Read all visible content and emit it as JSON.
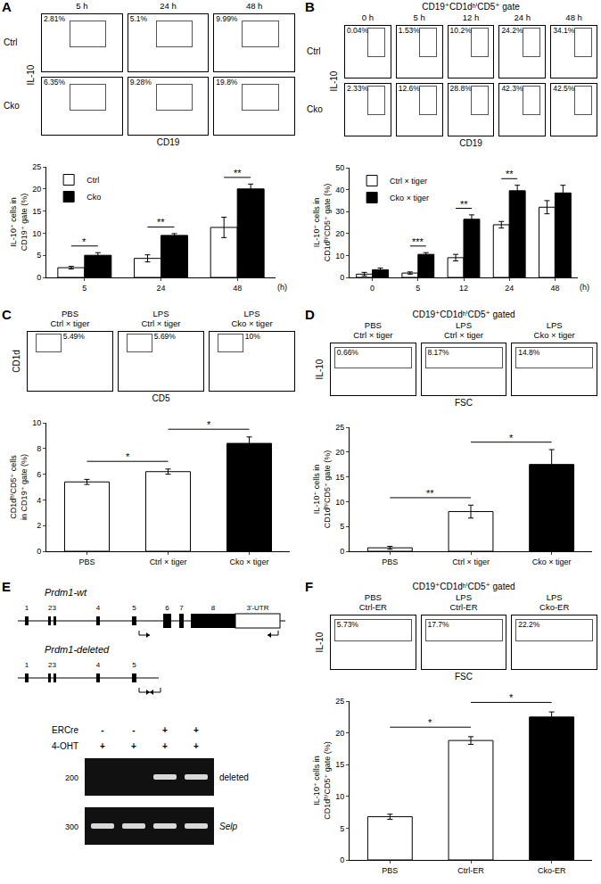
{
  "chart_data": [
    {
      "type": "bar",
      "categories": [
        "5",
        "24",
        "48"
      ],
      "xlabel": "(h)",
      "ylabel": [
        "IL-10⁺ cells in",
        "CD19⁺ gate (%)"
      ],
      "series": [
        {
          "name": "Ctrl",
          "color": "#ffffff",
          "values": [
            2.2,
            4.3,
            11.3
          ],
          "errors": [
            0.3,
            0.8,
            2.3
          ]
        },
        {
          "name": "Cko",
          "color": "#000000",
          "values": [
            5.0,
            9.5,
            20.0
          ],
          "errors": [
            0.6,
            0.4,
            1.1
          ]
        }
      ],
      "ylim": [
        0,
        25
      ],
      "yticks": [
        0,
        5,
        10,
        15,
        20,
        25
      ],
      "legend": "top-left",
      "grid": false,
      "annotations": [
        {
          "category": "5",
          "text": "*"
        },
        {
          "category": "24",
          "text": "**"
        },
        {
          "category": "48",
          "text": "**"
        }
      ]
    },
    {
      "type": "bar",
      "categories": [
        "0",
        "5",
        "12",
        "24",
        "48"
      ],
      "xlabel": "(h)",
      "ylabel": [
        "IL-10⁺ cells in",
        "CD1dʰⁱCD5⁺ gate (%)"
      ],
      "series": [
        {
          "name": "Ctrl × tiger",
          "color": "#ffffff",
          "values": [
            1.5,
            2.0,
            9.0,
            24.0,
            32.0
          ],
          "errors": [
            0.8,
            0.5,
            1.5,
            1.5,
            3.0
          ]
        },
        {
          "name": "Cko × tiger",
          "color": "#000000",
          "values": [
            3.5,
            10.5,
            26.5,
            39.5,
            38.5
          ],
          "errors": [
            0.8,
            0.8,
            2.0,
            2.5,
            3.5
          ]
        }
      ],
      "ylim": [
        0,
        50
      ],
      "yticks": [
        0,
        10,
        20,
        30,
        40,
        50
      ],
      "legend": "top-left",
      "grid": false,
      "annotations": [
        {
          "category": "5",
          "text": "***"
        },
        {
          "category": "12",
          "text": "**"
        },
        {
          "category": "24",
          "text": "**"
        }
      ]
    },
    {
      "type": "bar",
      "categories": [
        "PBS",
        "Ctrl × tiger",
        "Cko × tiger"
      ],
      "ylabel": [
        "CD1dʰⁱCD5⁺ cells",
        "in CD19⁺ gate (%)"
      ],
      "values": [
        5.4,
        6.2,
        8.4
      ],
      "errors": [
        0.2,
        0.2,
        0.5
      ],
      "colors": [
        "#ffffff",
        "#ffffff",
        "#000000"
      ],
      "ylim": [
        0,
        10
      ],
      "yticks": [
        0,
        2,
        4,
        6,
        8,
        10
      ],
      "grid": false,
      "annotations": [
        {
          "from": "PBS",
          "to": "Ctrl × tiger",
          "text": "*"
        },
        {
          "from": "Ctrl × tiger",
          "to": "Cko × tiger",
          "text": "*"
        }
      ]
    },
    {
      "type": "bar",
      "categories": [
        "PBS",
        "Ctrl × tiger",
        "Cko × tiger"
      ],
      "ylabel": [
        "IL-10⁺ cells in",
        "CD1dʰⁱCD5⁺ gate (%)"
      ],
      "values": [
        0.7,
        8.0,
        17.5
      ],
      "errors": [
        0.3,
        1.3,
        3.0
      ],
      "colors": [
        "#ffffff",
        "#ffffff",
        "#000000"
      ],
      "ylim": [
        0,
        25
      ],
      "yticks": [
        0,
        5,
        10,
        15,
        20,
        25
      ],
      "grid": false,
      "annotations": [
        {
          "from": "PBS",
          "to": "Ctrl × tiger",
          "text": "**"
        },
        {
          "from": "Ctrl × tiger",
          "to": "Cko × tiger",
          "text": "*"
        }
      ]
    },
    {
      "type": "bar",
      "categories": [
        "PBS",
        "Ctrl-ER",
        "Cko-ER"
      ],
      "ylabel": [
        "IL-10⁺ cells in",
        "CD1dʰⁱCD5⁺ gate (%)"
      ],
      "values": [
        6.8,
        18.8,
        22.5
      ],
      "errors": [
        0.4,
        0.6,
        0.8
      ],
      "colors": [
        "#ffffff",
        "#ffffff",
        "#000000"
      ],
      "ylim": [
        0,
        25
      ],
      "yticks": [
        0,
        5,
        10,
        15,
        20,
        25
      ],
      "grid": false,
      "annotations": [
        {
          "from": "PBS",
          "to": "Ctrl-ER",
          "text": "*"
        },
        {
          "from": "Ctrl-ER",
          "to": "Cko-ER",
          "text": "*"
        }
      ]
    }
  ],
  "flow_panels": [
    {
      "letter": "A",
      "rows": [
        "Ctrl",
        "Cko"
      ],
      "columns": [
        [
          "5 h"
        ],
        [
          "24 h"
        ],
        [
          "48 h"
        ]
      ],
      "percents": [
        [
          "2.81%",
          "5.1%",
          "9.99%"
        ],
        [
          "6.35%",
          "9.28%",
          "19.8%"
        ]
      ],
      "ylabel": "IL-10",
      "xlabel": "CD19"
    },
    {
      "letter": "B",
      "title": "CD19⁺CD1dʰⁱCD5⁺ gate",
      "rows": [
        "Ctrl",
        "Cko"
      ],
      "columns": [
        [
          "0 h"
        ],
        [
          "5 h"
        ],
        [
          "12 h"
        ],
        [
          "24 h"
        ],
        [
          "48 h"
        ]
      ],
      "percents": [
        [
          "0.04%",
          "1.53%",
          "10.2%",
          "24.2%",
          "34.1%"
        ],
        [
          "2.33%",
          "12.6%",
          "28.8%",
          "42.3%",
          "42.5%"
        ]
      ],
      "ylabel": "IL-10",
      "xlabel": "CD19"
    },
    {
      "letter": "C",
      "columns": [
        [
          "PBS",
          "Ctrl × tiger"
        ],
        [
          "LPS",
          "Ctrl × tiger"
        ],
        [
          "LPS",
          "Cko × tiger"
        ]
      ],
      "percents": [
        [
          "5.49%",
          "5.69%",
          "10%"
        ]
      ],
      "ylabel": "CD1d",
      "xlabel": "CD5"
    },
    {
      "letter": "D",
      "title": "CD19⁺CD1dʰⁱCD5⁺ gated",
      "columns": [
        [
          "PBS",
          "Ctrl × tiger"
        ],
        [
          "LPS",
          "Ctrl × tiger"
        ],
        [
          "LPS",
          "Cko × tiger"
        ]
      ],
      "percents": [
        [
          "0.66%",
          "8.17%",
          "14.8%"
        ]
      ],
      "ylabel": "IL-10",
      "xlabel": "FSC"
    },
    {
      "letter": "F",
      "title": "CD19⁺CD1dʰⁱCD5⁺ gated",
      "columns": [
        [
          "PBS",
          "Ctrl-ER"
        ],
        [
          "LPS",
          "Ctrl-ER"
        ],
        [
          "LPS",
          "Cko-ER"
        ]
      ],
      "percents": [
        [
          "5.73%",
          "17.7%",
          "22.2%"
        ]
      ],
      "ylabel": "IL-10",
      "xlabel": "FSC"
    }
  ],
  "gene_panel": {
    "letter": "E",
    "wt": {
      "label": "Prdm1-wt",
      "exons": [
        "1",
        "23",
        "4",
        "5",
        "6",
        "7",
        "8"
      ],
      "utr": "3'-UTR"
    },
    "deleted": {
      "label": "Prdm1-deleted",
      "exons": [
        "1",
        "23",
        "4",
        "5"
      ]
    },
    "gel": {
      "rows": [
        {
          "label": "ERCre",
          "signs": [
            "-",
            "-",
            "+",
            "+"
          ]
        },
        {
          "label": "4-OHT",
          "signs": [
            "+",
            "+",
            "+",
            "+"
          ]
        }
      ],
      "bands": [
        {
          "label": "deleted",
          "size": "200",
          "present": [
            false,
            false,
            true,
            true
          ]
        },
        {
          "label": "Selp",
          "size": "300",
          "present": [
            true,
            true,
            true,
            true
          ]
        }
      ]
    }
  }
}
